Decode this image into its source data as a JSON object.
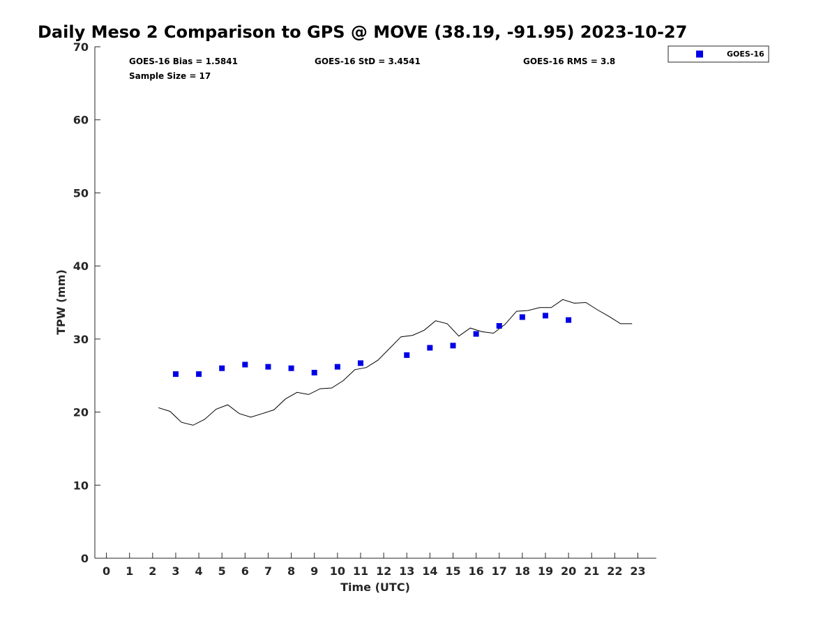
{
  "chart_data": {
    "type": "scatter",
    "title": "Daily Meso 2 Comparison to GPS @ MOVE (38.19, -91.95) 2023-10-27",
    "xlabel": "Time (UTC)",
    "ylabel": "TPW (mm)",
    "xlim": [
      -0.5,
      23.8
    ],
    "ylim": [
      0,
      70
    ],
    "x_ticks": [
      "0",
      "1",
      "2",
      "3",
      "4",
      "5",
      "6",
      "7",
      "8",
      "9",
      "10",
      "11",
      "12",
      "13",
      "14",
      "15",
      "16",
      "17",
      "18",
      "19",
      "20",
      "21",
      "22",
      "23"
    ],
    "y_ticks": [
      "0",
      "10",
      "20",
      "30",
      "40",
      "50",
      "60",
      "70"
    ],
    "grid": false,
    "legend_position": "top-right",
    "stats": {
      "bias": "GOES-16 Bias = 1.5841",
      "std": "GOES-16 StD = 3.4541",
      "rms": "GOES-16 RMS = 3.8",
      "sample": "Sample Size = 17"
    },
    "series": [
      {
        "name": "GOES-16",
        "kind": "scatter",
        "marker": "square",
        "color": "#0000e6",
        "x": [
          3,
          4,
          5,
          6,
          7,
          8,
          9,
          10,
          11,
          13,
          14,
          15,
          16,
          17,
          18,
          19,
          20
        ],
        "y": [
          25.2,
          25.2,
          26.0,
          26.5,
          26.2,
          26.0,
          25.4,
          26.2,
          26.7,
          27.8,
          28.8,
          29.1,
          30.7,
          31.8,
          33.0,
          33.2,
          32.6
        ]
      },
      {
        "kind": "line",
        "color": "#000000",
        "x": [
          2.25,
          2.75,
          3.25,
          3.75,
          4.25,
          4.75,
          5.25,
          5.75,
          6.25,
          6.75,
          7.25,
          7.75,
          8.25,
          8.75,
          9.25,
          9.75,
          10.25,
          10.75,
          11.25,
          11.75,
          12.25,
          12.75,
          13.25,
          13.75,
          14.25,
          14.75,
          15.25,
          15.75,
          16.25,
          16.75,
          17.25,
          17.75,
          18.25,
          18.75,
          19.25,
          19.75,
          20.25,
          20.75,
          21.25,
          21.75,
          22.25,
          22.75
        ],
        "y": [
          20.6,
          20.1,
          18.6,
          18.2,
          19.0,
          20.4,
          21.0,
          19.8,
          19.3,
          19.8,
          20.3,
          21.8,
          22.7,
          22.4,
          23.2,
          23.3,
          24.3,
          25.8,
          26.1,
          27.1,
          28.7,
          30.3,
          30.5,
          31.2,
          32.5,
          32.1,
          30.4,
          31.5,
          31.0,
          30.8,
          32.0,
          33.8,
          33.9,
          34.3,
          34.3,
          35.4,
          34.9,
          35.0,
          34.0,
          33.1,
          32.1,
          32.1
        ]
      }
    ]
  }
}
